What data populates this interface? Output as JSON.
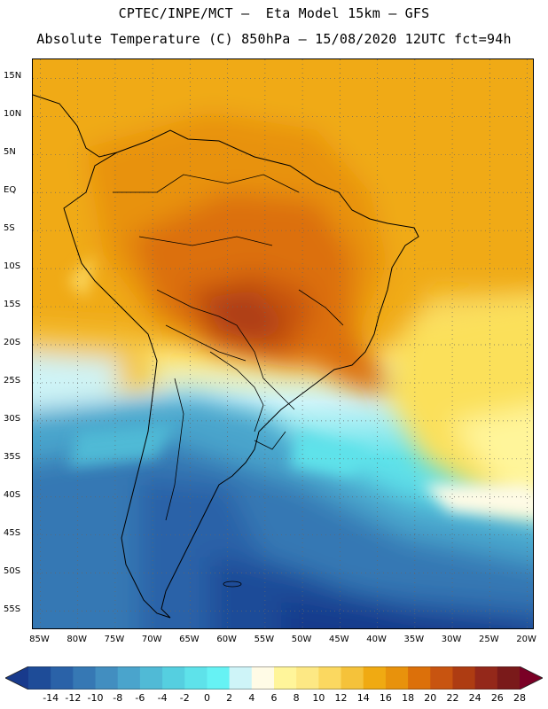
{
  "title": {
    "line1": "CPTEC/INPE/MCT –  Eta Model 15km – GFS",
    "line2": "Absolute Temperature (C) 850hPa – 15/08/2020 12UTC fct=94h"
  },
  "map": {
    "lat_labels": [
      "15N",
      "10N",
      "5N",
      "EQ",
      "5S",
      "10S",
      "15S",
      "20S",
      "25S",
      "30S",
      "35S",
      "40S",
      "45S",
      "50S",
      "55S"
    ],
    "lon_labels": [
      "85W",
      "80W",
      "75W",
      "70W",
      "65W",
      "60W",
      "55W",
      "50W",
      "45W",
      "40W",
      "35W",
      "30W",
      "25W",
      "20W"
    ],
    "lat_range": [
      -57.5,
      17.5
    ],
    "lon_range": [
      -86,
      -19
    ],
    "grid_style": "dotted",
    "field": "850hPa absolute temperature",
    "regions": [
      {
        "name": "amazon-core",
        "color": "#c84b10"
      },
      {
        "name": "central-brazil",
        "color": "#e06a0c"
      },
      {
        "name": "northern-sa",
        "color": "#eb9a0c"
      },
      {
        "name": "tropical-atlantic",
        "color": "#f0b20e"
      },
      {
        "name": "subtropical-atlantic",
        "color": "#fbe05a"
      },
      {
        "name": "southern-patagonia-cold-pool",
        "color": "#1c3f8e"
      }
    ]
  },
  "colorbar": {
    "labels": [
      "-14",
      "-12",
      "-10",
      "-8",
      "-6",
      "-4",
      "-2",
      "0",
      "2",
      "4",
      "6",
      "8",
      "10",
      "12",
      "14",
      "16",
      "18",
      "20",
      "22",
      "24",
      "26",
      "28"
    ],
    "colors": [
      "#183a8c",
      "#1e4c98",
      "#2a62a8",
      "#3678b4",
      "#428ec0",
      "#4aa4cc",
      "#50bad6",
      "#55cfe0",
      "#5ee2ea",
      "#66f2f4",
      "#cef4f8",
      "#fffbe6",
      "#fff59a",
      "#fde884",
      "#fbd860",
      "#f5c23a",
      "#f0aa12",
      "#e8920c",
      "#dc700a",
      "#c85410",
      "#ae3c12",
      "#94281a",
      "#7a1a1a",
      "#7a0026"
    ],
    "under_color": "#183a8c",
    "over_color": "#7a0026"
  }
}
